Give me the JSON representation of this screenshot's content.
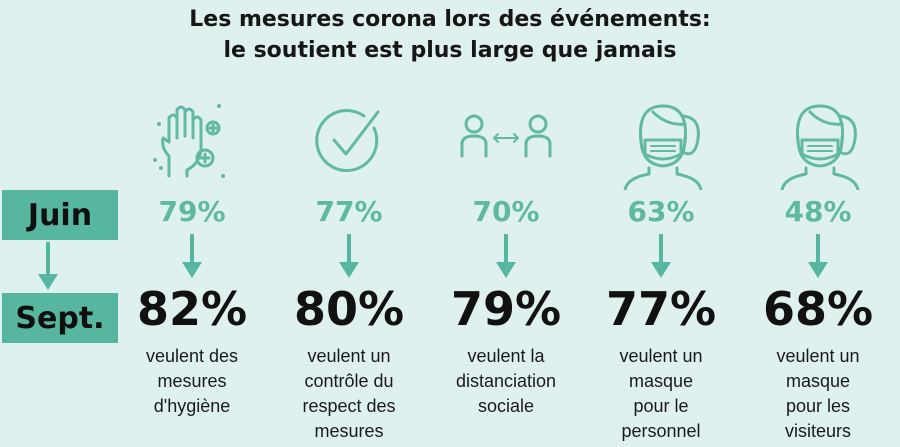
{
  "title_line1": "Les mesures corona lors des événements:",
  "title_line2": "le soutient est plus large que jamais",
  "row_labels": {
    "june": "Juin",
    "september": "Sept."
  },
  "colors": {
    "accent": "#56b69e",
    "june_text": "#5fb9a1",
    "background": "#dff1ee"
  },
  "measures": [
    {
      "icon": "hand-hygiene-icon",
      "june": "79%",
      "september": "82%",
      "desc": [
        "veulent des",
        "mesures",
        "d'hygiène"
      ]
    },
    {
      "icon": "checkmark-icon",
      "june": "77%",
      "september": "80%",
      "desc": [
        "veulent un",
        "contrôle du",
        "respect des",
        "mesures"
      ]
    },
    {
      "icon": "social-distance-icon",
      "june": "70%",
      "september": "79%",
      "desc": [
        "veulent la",
        "distanciation",
        "sociale"
      ]
    },
    {
      "icon": "masked-woman-icon",
      "june": "63%",
      "september": "77%",
      "desc": [
        "veulent un",
        "masque",
        "pour le",
        "personnel"
      ]
    },
    {
      "icon": "masked-woman-icon",
      "june": "48%",
      "september": "68%",
      "desc": [
        "veulent un",
        "masque",
        "pour les",
        "visiteurs"
      ]
    }
  ],
  "chart_data": {
    "type": "table",
    "categories": [
      "mesures d'hygiène",
      "contrôle du respect des mesures",
      "distanciation sociale",
      "masque pour le personnel",
      "masque pour les visiteurs"
    ],
    "series": [
      {
        "name": "Juin",
        "values": [
          79,
          77,
          70,
          63,
          48
        ]
      },
      {
        "name": "Sept.",
        "values": [
          82,
          80,
          79,
          77,
          68
        ]
      }
    ],
    "unit": "%"
  }
}
